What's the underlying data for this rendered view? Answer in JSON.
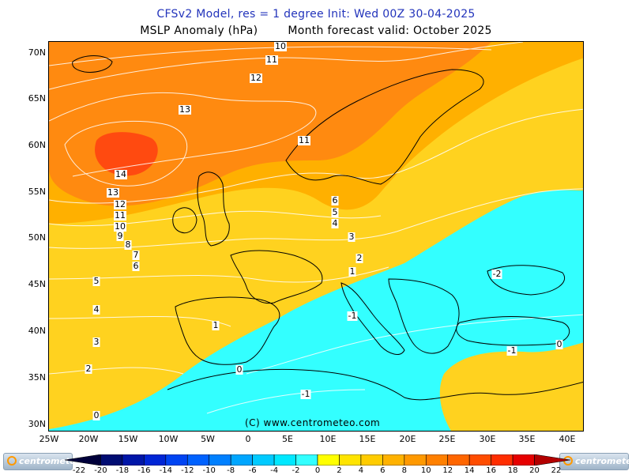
{
  "title": {
    "line1": "CFSv2 Model, res = 1 degree   Init: Wed 00Z 30-04-2025",
    "line2a": "MSLP Anomaly (hPa)",
    "line2b": "Month forecast valid: October 2025"
  },
  "latitudes": [
    "70N",
    "65N",
    "60N",
    "55N",
    "50N",
    "45N",
    "40N",
    "35N",
    "30N"
  ],
  "longitudes": [
    "25W",
    "20W",
    "15W",
    "10W",
    "5W",
    "0",
    "5E",
    "10E",
    "15E",
    "20E",
    "25E",
    "30E",
    "35E",
    "40E"
  ],
  "contour_labels": [
    "10",
    "11",
    "12",
    "13",
    "14",
    "11",
    "13",
    "12",
    "11",
    "10",
    "9",
    "8",
    "7",
    "6",
    "6",
    "5",
    "4",
    "3",
    "2",
    "1",
    "5",
    "4",
    "3",
    "2",
    "0",
    "1",
    "-1",
    "-1",
    "-2",
    "-1",
    "0",
    "0"
  ],
  "copyright": "(C) www.centrometeo.com",
  "logo_text": "centrometeo",
  "colorbar": {
    "labels": [
      "-22",
      "-20",
      "-18",
      "-16",
      "-14",
      "-12",
      "-10",
      "-8",
      "-6",
      "-4",
      "-2",
      "0",
      "2",
      "4",
      "6",
      "8",
      "10",
      "12",
      "14",
      "16",
      "18",
      "20",
      "22"
    ],
    "colors": [
      "#00003a",
      "#000c72",
      "#0016a8",
      "#0026d6",
      "#0044f2",
      "#0062ff",
      "#0080ff",
      "#00a6ff",
      "#00caff",
      "#00e8ff",
      "#33ffff",
      "#ffff00",
      "#ffe400",
      "#ffcc00",
      "#ffb200",
      "#ff9900",
      "#ff8000",
      "#ff6600",
      "#ff4d00",
      "#ff2e00",
      "#e60000",
      "#b30000"
    ]
  },
  "legend_colors": {
    "positive_high": "#ff4a10",
    "positive_mid": "#ff8a10",
    "positive_low": "#ffb000",
    "neutral_pos": "#ffd21f",
    "negative": "#33ffff"
  }
}
